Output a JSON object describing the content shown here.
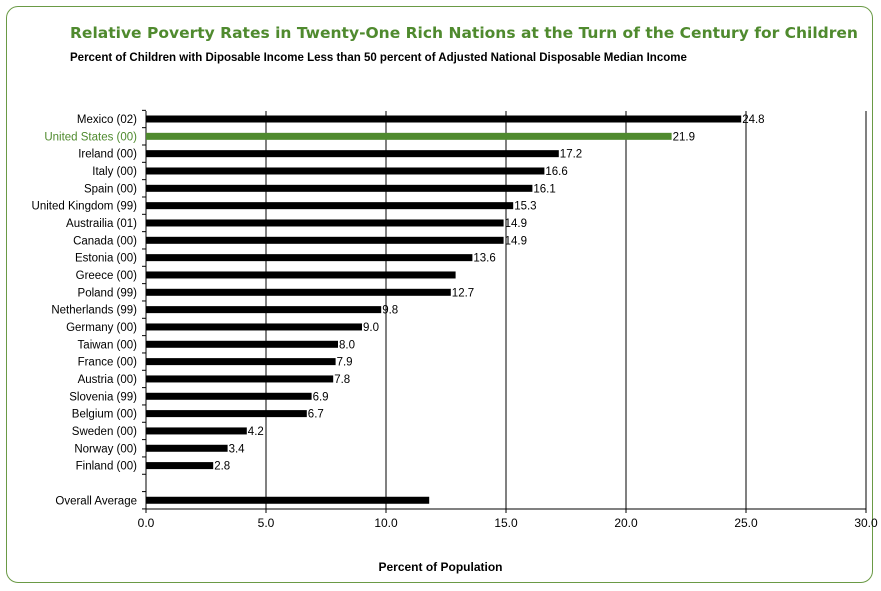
{
  "chart_data": {
    "type": "bar",
    "orientation": "horizontal",
    "title": "Relative Poverty Rates in Twenty-One Rich Nations at the Turn of the Century for Children",
    "subtitle": "Percent of Children with Diposable Income Less than 50 percent of Adjusted National Disposable Median Income",
    "xlabel": "Percent of Population",
    "ylabel": "",
    "xlim": [
      0,
      30
    ],
    "xticks": [
      "0.0",
      "5.0",
      "10.0",
      "15.0",
      "20.0",
      "25.0",
      "30.0"
    ],
    "grid": "vertical",
    "categories": [
      "Mexico (02)",
      "United States (00)",
      "Ireland (00)",
      "Italy (00)",
      "Spain (00)",
      "United Kingdom (99)",
      "Austrailia (01)",
      "Canada (00)",
      "Estonia (00)",
      "Greece (00)",
      "Poland (99)",
      "Netherlands (99)",
      "Germany (00)",
      "Taiwan (00)",
      "France (00)",
      "Austria (00)",
      "Slovenia (99)",
      "Belgium (00)",
      "Sweden (00)",
      "Norway (00)",
      "Finland (00)",
      "",
      "Overall Average"
    ],
    "values": [
      24.8,
      21.9,
      17.2,
      16.6,
      16.1,
      15.3,
      14.9,
      14.9,
      13.6,
      12.9,
      12.7,
      9.8,
      9.0,
      8.0,
      7.9,
      7.8,
      6.9,
      6.7,
      4.2,
      3.4,
      2.8,
      null,
      11.8
    ],
    "data_labels": [
      "24.8",
      "21.9",
      "17.2",
      "16.6",
      "16.1",
      "15.3",
      "14.9",
      "14.9",
      "13.6",
      "",
      "12.7",
      "9.8",
      "9.0",
      "8.0",
      "7.9",
      "7.8",
      "6.9",
      "6.7",
      "4.2",
      "3.4",
      "2.8",
      "",
      ""
    ],
    "highlight_index": 1,
    "colors": {
      "bar": "#000000",
      "highlight": "#4f8a2e",
      "frame": "#6a9a45",
      "title": "#4f8a2e"
    }
  }
}
